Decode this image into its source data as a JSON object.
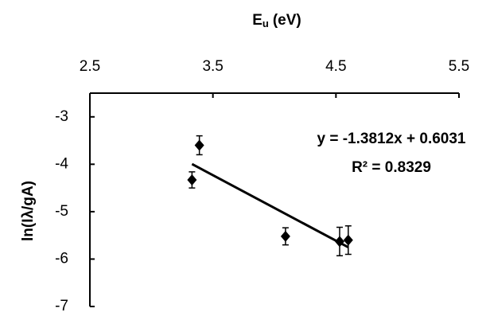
{
  "chart_data": {
    "type": "scatter",
    "xlabel": "E",
    "xlabel_sub": "u",
    "xlabel_unit": "(eV)",
    "ylabel": "ln(Iλ/gA)",
    "x": [
      3.33,
      3.39,
      4.09,
      4.53,
      4.6
    ],
    "values": [
      -4.33,
      -3.6,
      -5.52,
      -5.63,
      -5.6
    ],
    "errors": [
      0.17,
      0.2,
      0.18,
      0.3,
      0.3
    ],
    "color": "#000000",
    "xlim": [
      2.5,
      5.5
    ],
    "xticks": [
      2.5,
      3.5,
      4.5,
      5.5
    ],
    "ylim": [
      -7,
      -2.5
    ],
    "yticks": [
      -3,
      -4,
      -5,
      -6,
      -7
    ],
    "trendline": {
      "slope": -1.3812,
      "intercept": 0.6031,
      "equation": "y = -1.3812x + 0.6031",
      "r2": "R² = 0.8329"
    }
  }
}
